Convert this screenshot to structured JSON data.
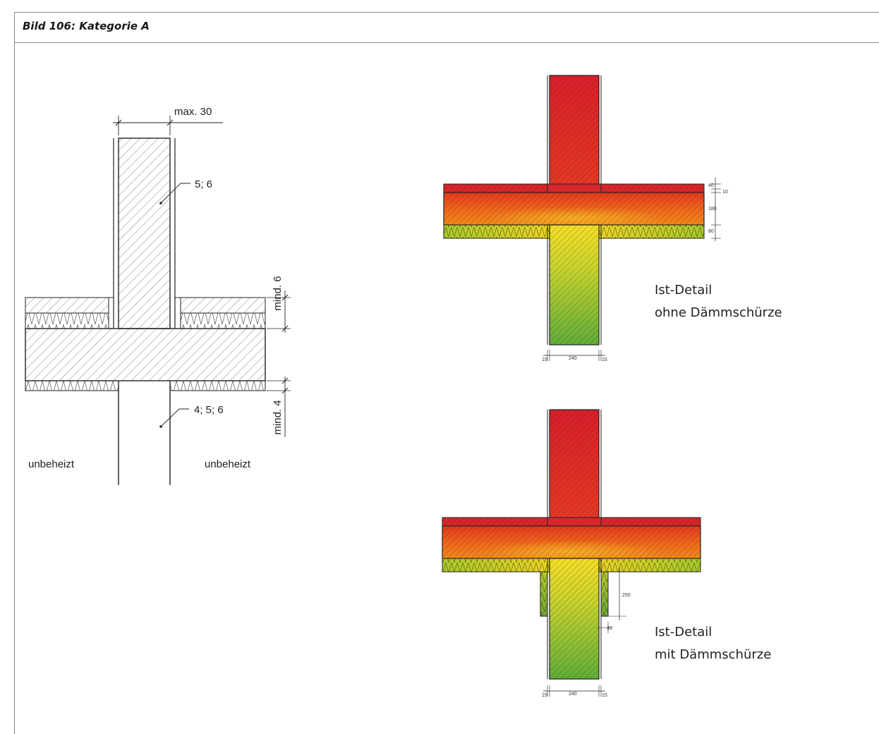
{
  "caption": "Bild 106: Kategorie A",
  "schematic": {
    "dim_top": "max. 30",
    "label_upper_wall": "5; 6",
    "label_lower_wall": "4; 5; 6",
    "dim_upper_insulation": "mind. 6",
    "dim_lower_insulation": "mind. 4",
    "zone_left": "unbeheizt",
    "zone_right": "unbeheizt"
  },
  "detail_without_skirt": {
    "line1": "Ist-Detail",
    "line2": "ohne Dämmschürze",
    "dims_right": [
      "40",
      "10",
      "180",
      "80"
    ],
    "dims_bottom": [
      "15",
      "240",
      "15"
    ]
  },
  "detail_with_skirt": {
    "line1": "Ist-Detail",
    "line2": "mit Dämmschürze",
    "dim_skirt_height": "250",
    "dim_skirt_thickness": "40",
    "dims_bottom": [
      "15",
      "240",
      "15"
    ]
  },
  "colors": {
    "hot": "#d8202a",
    "warm": "#ef6a1c",
    "mid": "#f6d22a",
    "cool": "#6fb83a",
    "line": "#222222",
    "frame": "#8a8a8a"
  }
}
